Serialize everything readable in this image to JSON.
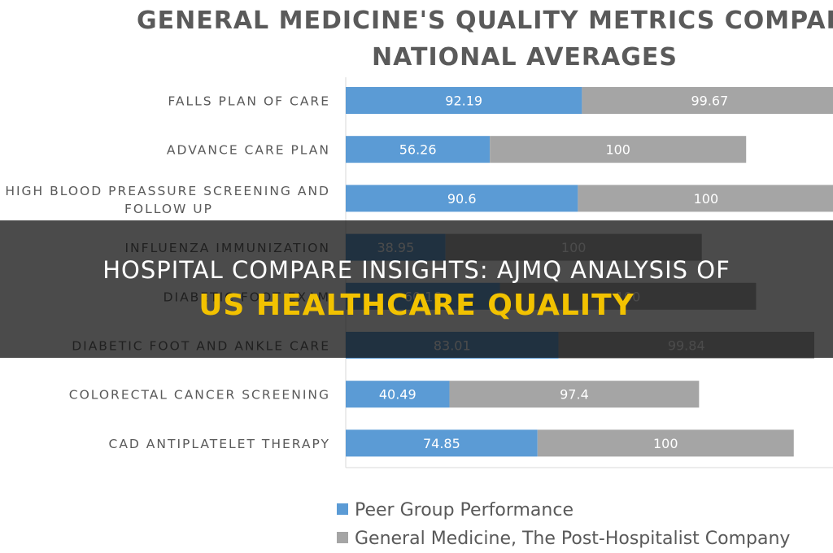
{
  "chart_data": {
    "type": "bar",
    "orientation": "horizontal",
    "stacked": true,
    "title_line1": "GENERAL MEDICINE'S QUALITY METRICS COMPARED",
    "title_line2": "NATIONAL AVERAGES",
    "categories": [
      "FALLS PLAN OF CARE",
      "ADVANCE CARE PLAN",
      "HIGH BLOOD PREASSURE SCREENING AND FOLLOW UP",
      "INFLUENZA IMMUNIZATION",
      "DIABETIC FOOT EXAM",
      "DIABETIC FOOT AND ANKLE CARE",
      "COLORECTAL CANCER SCREENING",
      "CAD ANTIPLATELET THERAPY"
    ],
    "series": [
      {
        "name": "Peer Group Performance",
        "color": "#5b9bd5",
        "values": [
          92.19,
          56.26,
          90.6,
          38.95,
          60.16,
          83.01,
          40.49,
          74.85
        ]
      },
      {
        "name": "General Medicine, The Post-Hospitalist Company",
        "color": "#a5a5a5",
        "values": [
          99.67,
          100,
          100,
          100,
          100,
          99.84,
          97.4,
          100
        ]
      }
    ],
    "legend_position": "bottom",
    "grid": false
  },
  "overlay": {
    "line1": "HOSPITAL COMPARE INSIGHTS: AJMQ ANALYSIS OF",
    "line2": "US HEALTHCARE QUALITY",
    "text_color": "#ffffff",
    "accent_color": "#f2c200"
  }
}
